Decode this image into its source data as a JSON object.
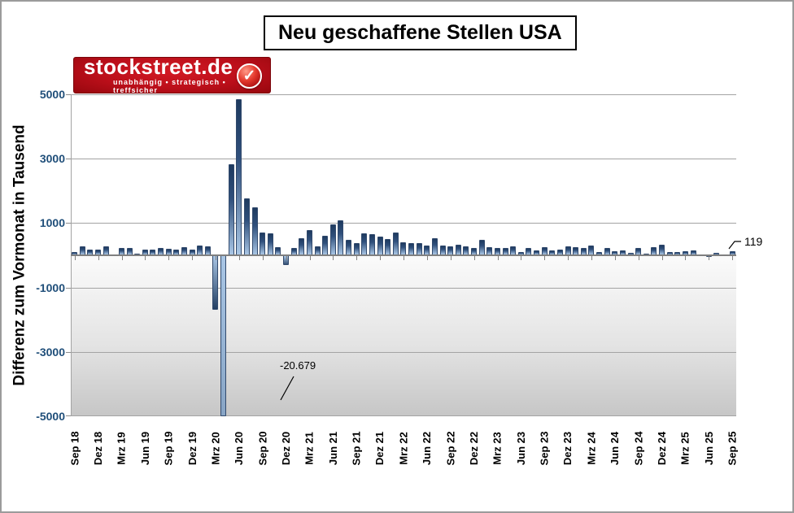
{
  "logo": {
    "brand": "stockstreet.de",
    "tagline": "unabhängig • strategisch • treffsicher",
    "check_glyph": "✓",
    "bg_color": "#bb0f1a"
  },
  "chart_data": {
    "type": "bar",
    "title": "Neu geschaffene Stellen USA",
    "ylabel": "Differenz zum Vormonat in Tausend",
    "xlabel": "",
    "ylim": [
      -5000,
      5000
    ],
    "grid": true,
    "legend": false,
    "y_ticks": [
      5000,
      3000,
      1000,
      -1000,
      -3000,
      -5000
    ],
    "x_tick_labels": [
      "Sep 18",
      "Dez 18",
      "Mrz 19",
      "Jun 19",
      "Sep 19",
      "Dez 19",
      "Mrz 20",
      "Jun 20",
      "Sep 20",
      "Dez 20",
      "Mrz 21",
      "Jun 21",
      "Sep 21",
      "Dez 21",
      "Mrz 22",
      "Jun 22",
      "Sep 22",
      "Dez 22",
      "Mrz 23",
      "Jun 23",
      "Sep 23",
      "Dez 23",
      "Mrz 24",
      "Jun 24",
      "Sep 24",
      "Dez 24",
      "Mrz 25",
      "Jun 25",
      "Sep 25"
    ],
    "months_per_tick": 3,
    "values": [
      108,
      277,
      170,
      182,
      269,
      1,
      228,
      216,
      62,
      178,
      166,
      219,
      208,
      185,
      261,
      184,
      315,
      289,
      -1683,
      -20679,
      2833,
      4846,
      1761,
      1489,
      716,
      680,
      264,
      -306,
      233,
      536,
      785,
      269,
      614,
      962,
      1091,
      483,
      379,
      677,
      647,
      588,
      504,
      714,
      398,
      368,
      386,
      293,
      537,
      292,
      269,
      324,
      290,
      239,
      472,
      248,
      217,
      217,
      281,
      105,
      236,
      165,
      246,
      150,
      182,
      290,
      256,
      236,
      310,
      108,
      216,
      118,
      144,
      78,
      240,
      44,
      261,
      323,
      111,
      102,
      120,
      158,
      19,
      -13,
      79,
      22,
      119
    ],
    "annotations": [
      {
        "text": "-20.679"
      },
      {
        "text": "119"
      }
    ],
    "colors": {
      "bar_dark": "#1e3a5f",
      "bar_light": "#a9c6e5",
      "axis_label": "#1f4e79",
      "gridline": "#a3a3a3"
    }
  }
}
